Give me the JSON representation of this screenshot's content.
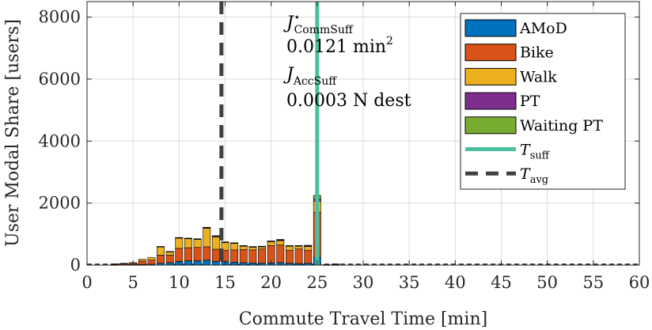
{
  "chart_data": {
    "type": "bar",
    "stacked": true,
    "xlabel": "Commute Travel Time [min]",
    "ylabel": "User Modal Share [users]",
    "xlim": [
      0,
      60
    ],
    "ylim": [
      0,
      8500
    ],
    "x_ticks": [
      0,
      5,
      10,
      15,
      20,
      25,
      30,
      35,
      40,
      45,
      50,
      55,
      60
    ],
    "y_ticks": [
      0,
      2000,
      4000,
      6000,
      8000
    ],
    "grid": true,
    "legend_position": "top-right",
    "bar_width": 0.8,
    "x": [
      3,
      4,
      5,
      6,
      7,
      8,
      9,
      10,
      11,
      12,
      13,
      14,
      15,
      16,
      17,
      18,
      19,
      20,
      21,
      22,
      23,
      24,
      25,
      26,
      27
    ],
    "series": [
      {
        "name": "AMoD",
        "color": "#0072BD",
        "values": [
          5,
          10,
          15,
          20,
          30,
          60,
          80,
          120,
          140,
          140,
          160,
          120,
          110,
          90,
          80,
          70,
          60,
          70,
          80,
          60,
          50,
          60,
          250,
          5,
          5
        ]
      },
      {
        "name": "Bike",
        "color": "#D95319",
        "values": [
          20,
          30,
          40,
          110,
          130,
          260,
          240,
          420,
          420,
          430,
          430,
          390,
          370,
          400,
          420,
          420,
          460,
          560,
          570,
          420,
          470,
          420,
          1450,
          10,
          20
        ]
      },
      {
        "name": "Walk",
        "color": "#EDB120",
        "values": [
          15,
          20,
          25,
          60,
          80,
          270,
          110,
          330,
          290,
          260,
          600,
          400,
          250,
          210,
          110,
          90,
          70,
          130,
          140,
          130,
          90,
          120,
          360,
          0,
          10
        ]
      },
      {
        "name": "PT",
        "color": "#7E2F8E",
        "values": [
          0,
          0,
          0,
          0,
          0,
          5,
          5,
          10,
          10,
          10,
          15,
          20,
          10,
          10,
          10,
          10,
          10,
          10,
          20,
          10,
          10,
          20,
          70,
          0,
          0
        ]
      },
      {
        "name": "Waiting PT",
        "color": "#77AC30",
        "values": [
          0,
          0,
          0,
          0,
          0,
          5,
          5,
          10,
          10,
          10,
          15,
          20,
          10,
          10,
          10,
          10,
          10,
          10,
          20,
          10,
          10,
          20,
          120,
          0,
          0
        ]
      }
    ],
    "vlines": [
      {
        "name": "T_suff",
        "x": 25,
        "color": "#4BBF9F",
        "style": "solid"
      },
      {
        "name": "T_avg",
        "x": 14.6,
        "color": "#404040",
        "style": "dashed"
      }
    ],
    "annotations": [
      {
        "sym": "J",
        "sup": "⋆",
        "sub": "CommSuff"
      },
      {
        "text": "0.0121 min",
        "sup": "2"
      },
      {
        "sym": "J",
        "sub": "AccSuff"
      },
      {
        "text": "0.0003 N dest"
      }
    ],
    "legend": [
      {
        "label": "AMoD",
        "sub": "",
        "kind": "patch",
        "color": "#0072BD"
      },
      {
        "label": "Bike",
        "sub": "",
        "kind": "patch",
        "color": "#D95319"
      },
      {
        "label": "Walk",
        "sub": "",
        "kind": "patch",
        "color": "#EDB120"
      },
      {
        "label": "PT",
        "sub": "",
        "kind": "patch",
        "color": "#7E2F8E"
      },
      {
        "label": "Waiting PT",
        "sub": "",
        "kind": "patch",
        "color": "#77AC30"
      },
      {
        "label": "T",
        "sub": "suff",
        "kind": "line",
        "color": "#4BBF9F"
      },
      {
        "label": "T",
        "sub": "avg",
        "kind": "dash",
        "color": "#404040"
      }
    ]
  }
}
